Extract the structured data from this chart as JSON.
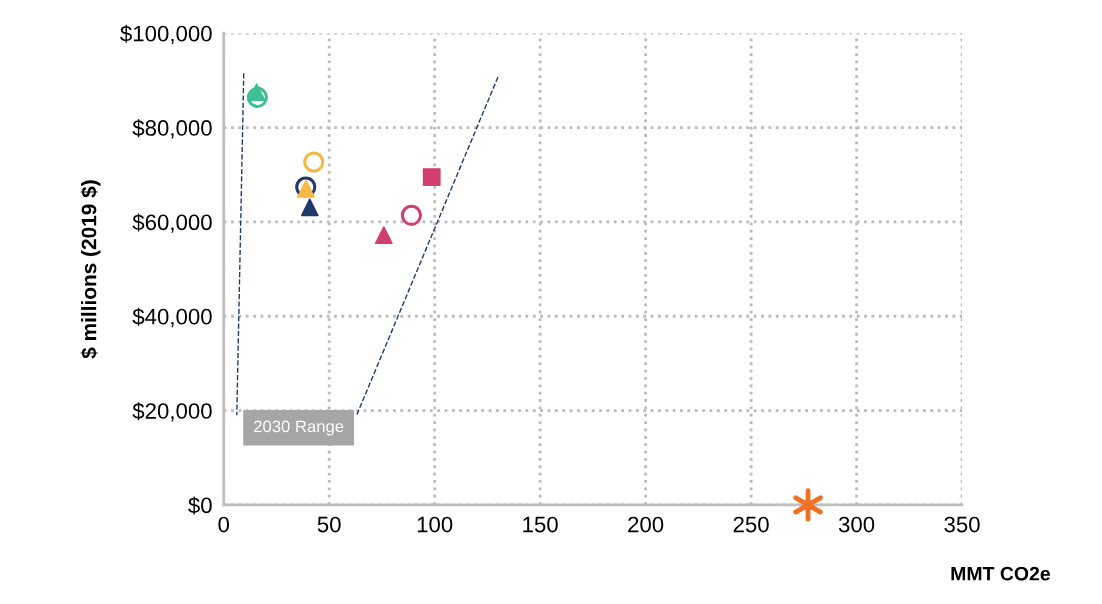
{
  "chart_data": {
    "type": "scatter",
    "xlabel": "MMT CO2e",
    "ylabel": "$ millions (2019 $)",
    "xlim": [
      0,
      350
    ],
    "xticks": [
      0,
      50,
      100,
      150,
      200,
      250,
      300,
      350
    ],
    "ylim": [
      0,
      100000
    ],
    "yticks": [
      {
        "value": 0,
        "label": "$0"
      },
      {
        "value": 20000,
        "label": "$20,000"
      },
      {
        "value": 40000,
        "label": "$40,000"
      },
      {
        "value": 60000,
        "label": "$60,000"
      },
      {
        "value": 80000,
        "label": "$80,000"
      },
      {
        "value": 100000,
        "label": "$100,000"
      }
    ],
    "grid": true,
    "legend": false,
    "series": [
      {
        "type": "line",
        "line_style": "dashed",
        "marker": "none",
        "color": "#1f3a6b",
        "x": [
          9.5,
          6.2
        ],
        "values": [
          91500,
          19000
        ]
      },
      {
        "type": "line",
        "line_style": "dashed",
        "marker": "none",
        "color": "#1f3a6b",
        "x": [
          130,
          63
        ],
        "values": [
          90700,
          19000
        ]
      },
      {
        "marker": "triangle",
        "color": "#3dbf94",
        "x": [
          15.6
        ],
        "values": [
          87500
        ]
      },
      {
        "marker": "circle",
        "color": "#3dbf94",
        "x": [
          16
        ],
        "values": [
          86400
        ]
      },
      {
        "marker": "circle",
        "color": "#f5b942",
        "x": [
          42.7
        ],
        "values": [
          72700
        ]
      },
      {
        "marker": "circle",
        "color": "#1f3a6b",
        "x": [
          38.9
        ],
        "values": [
          67400
        ]
      },
      {
        "marker": "triangle",
        "color": "#f5b942",
        "x": [
          39
        ],
        "values": [
          67000
        ]
      },
      {
        "marker": "triangle",
        "color": "#1f3a6b",
        "x": [
          40.8
        ],
        "values": [
          63100
        ]
      },
      {
        "marker": "square",
        "color": "#d03f6e",
        "x": [
          98.6
        ],
        "values": [
          69500
        ]
      },
      {
        "marker": "circle",
        "color": "#d03f6e",
        "x": [
          89
        ],
        "values": [
          61400
        ]
      },
      {
        "marker": "triangle",
        "color": "#d03f6e",
        "x": [
          75.9
        ],
        "values": [
          57200
        ]
      },
      {
        "marker": "cross",
        "color": "#f07125",
        "x": [
          277
        ],
        "values": [
          0
        ]
      }
    ],
    "annotations": [
      "2030 Range"
    ]
  }
}
